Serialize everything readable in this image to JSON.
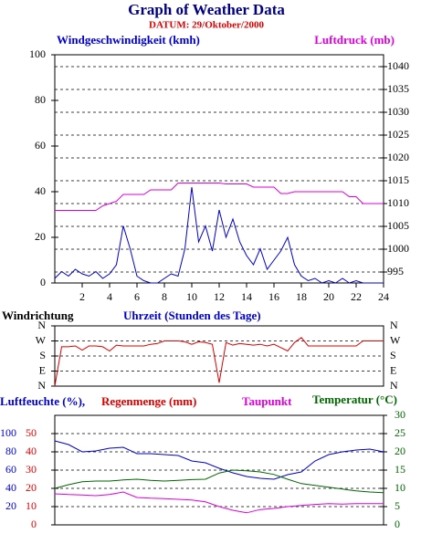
{
  "header": {
    "title": "Graph of Weather Data",
    "subtitle": "DATUM: 29/Oktober/2000"
  },
  "chart_data": [
    {
      "type": "line",
      "ylabel": "Windgeschwindigkeit (kmh)",
      "y2label": "Luftdruck (mb)",
      "xlabel": "Uhrzeit (Stunden des Tage)",
      "xlim": [
        0,
        24
      ],
      "xticks": [
        2,
        4,
        6,
        8,
        10,
        12,
        14,
        16,
        18,
        20,
        22,
        24
      ],
      "ylim": [
        0,
        100
      ],
      "yticks": [
        0,
        20,
        40,
        60,
        80,
        100
      ],
      "y2lim": [
        992.6,
        1042.6
      ],
      "y2ticks": [
        995,
        1000,
        1005,
        1010,
        1015,
        1020,
        1025,
        1030,
        1035,
        1040
      ],
      "grid": true,
      "x": [
        0,
        0.5,
        1,
        1.5,
        2,
        2.5,
        3,
        3.5,
        4,
        4.5,
        5,
        5.5,
        6,
        6.5,
        7,
        7.5,
        8,
        8.5,
        9,
        9.5,
        10,
        10.5,
        11,
        11.5,
        12,
        12.5,
        13,
        13.5,
        14,
        14.5,
        15,
        15.5,
        16,
        16.5,
        17,
        17.5,
        18,
        18.5,
        19,
        19.5,
        20,
        20.5,
        21,
        21.5,
        22,
        22.5,
        23,
        23.5,
        24
      ],
      "series": [
        {
          "name": "Windgeschwindigkeit",
          "color": "#0000cc",
          "axis": "y",
          "values": [
            2,
            5,
            3,
            6,
            4,
            3,
            5,
            2,
            4,
            8,
            25,
            15,
            3,
            1,
            0,
            0,
            2,
            4,
            3,
            15,
            42,
            18,
            25,
            14,
            32,
            20,
            28,
            18,
            12,
            8,
            15,
            6,
            10,
            14,
            20,
            8,
            3,
            1,
            2,
            0,
            1,
            0,
            2,
            0,
            1,
            0,
            0,
            0,
            0
          ]
        },
        {
          "name": "Luftdruck",
          "color": "#dd00dd",
          "axis": "y2",
          "values": [
            1008.5,
            1008.5,
            1008.5,
            1008.5,
            1008.5,
            1008.5,
            1008.5,
            1009.5,
            1010,
            1010.5,
            1012,
            1012,
            1012,
            1012,
            1013,
            1013,
            1013,
            1013,
            1014.5,
            1014.5,
            1014.5,
            1014.5,
            1014.5,
            1014.5,
            1014.5,
            1014.3,
            1014.3,
            1014.3,
            1014.3,
            1013.6,
            1013.6,
            1013.6,
            1013.6,
            1012.2,
            1012.2,
            1012.6,
            1012.6,
            1012.6,
            1012.6,
            1012.6,
            1012.6,
            1012.6,
            1012.6,
            1011.5,
            1011.5,
            1010,
            1010,
            1010,
            1010
          ]
        }
      ]
    },
    {
      "type": "line",
      "ylabel": "Windrichtung",
      "xlim": [
        0,
        24
      ],
      "ylim": [
        0,
        360
      ],
      "yticks": [
        {
          "value": 0,
          "label": "N"
        },
        {
          "value": 90,
          "label": "E"
        },
        {
          "value": 180,
          "label": "S"
        },
        {
          "value": 270,
          "label": "W"
        },
        {
          "value": 360,
          "label": "N"
        }
      ],
      "grid": true,
      "x": [
        0,
        0.5,
        1,
        1.5,
        2,
        2.5,
        3,
        3.5,
        4,
        4.5,
        5,
        5.5,
        6,
        6.5,
        7,
        7.5,
        8,
        8.5,
        9,
        9.5,
        10,
        10.5,
        11,
        11.5,
        12,
        12.5,
        13,
        13.5,
        14,
        14.5,
        15,
        15.5,
        16,
        16.5,
        17,
        17.5,
        18,
        18.5,
        19,
        19.5,
        20,
        20.5,
        21,
        21.5,
        22,
        22.5,
        23,
        23.5,
        24
      ],
      "series": [
        {
          "name": "Windrichtung",
          "color": "#dd0000",
          "axis": "y",
          "values": [
            0,
            235,
            235,
            240,
            215,
            240,
            240,
            235,
            210,
            245,
            240,
            240,
            240,
            240,
            250,
            255,
            270,
            270,
            270,
            265,
            250,
            265,
            260,
            250,
            20,
            260,
            245,
            255,
            250,
            245,
            250,
            240,
            250,
            230,
            210,
            260,
            290,
            240,
            240,
            240,
            240,
            240,
            240,
            240,
            240,
            270,
            270,
            270,
            270
          ]
        }
      ]
    },
    {
      "type": "line",
      "y3label": "Regenmenge (mm)",
      "xlim": [
        0,
        24
      ],
      "ylim": [
        0,
        120
      ],
      "yticks": [
        20,
        40,
        60,
        80,
        100
      ],
      "y3lim": [
        0,
        60
      ],
      "y3ticks": [
        0,
        10,
        20,
        30,
        40,
        50
      ],
      "y2lim": [
        0,
        30
      ],
      "y2ticks": [
        0,
        5,
        10,
        15,
        20,
        25,
        30
      ],
      "grid": true,
      "x": [
        0,
        1,
        2,
        3,
        4,
        5,
        6,
        7,
        8,
        9,
        10,
        11,
        12,
        13,
        14,
        15,
        16,
        17,
        18,
        19,
        20,
        21,
        22,
        23,
        24
      ],
      "series": [
        {
          "name": "Luftfeuchte (%),",
          "color": "#0000cc",
          "axis": "y",
          "values": [
            92,
            88,
            80,
            81,
            84,
            85,
            78,
            78,
            77,
            76,
            70,
            68,
            62,
            57,
            53,
            51,
            50,
            55,
            58,
            70,
            77,
            80,
            82,
            83,
            80
          ]
        },
        {
          "name": "Taupunkt",
          "color": "#dd00dd",
          "axis": "y2",
          "values": [
            8.5,
            8.3,
            8.2,
            8,
            8.3,
            9,
            7.5,
            7.3,
            7.2,
            7,
            6.8,
            6.3,
            5,
            4,
            3.3,
            4.2,
            4.5,
            5,
            5.3,
            5.6,
            5.8,
            5.7,
            5.8,
            5.8,
            5.8
          ]
        },
        {
          "name": "Temperatur (°C)",
          "color": "#006600",
          "axis": "y2",
          "values": [
            10,
            11,
            11.8,
            12,
            12,
            12.3,
            12.5,
            12.2,
            12,
            12.2,
            12.4,
            12.5,
            14.2,
            15,
            14.8,
            14.5,
            13.8,
            12.5,
            11.3,
            10.8,
            10.3,
            9.8,
            9.3,
            9,
            8.8
          ]
        }
      ]
    }
  ]
}
